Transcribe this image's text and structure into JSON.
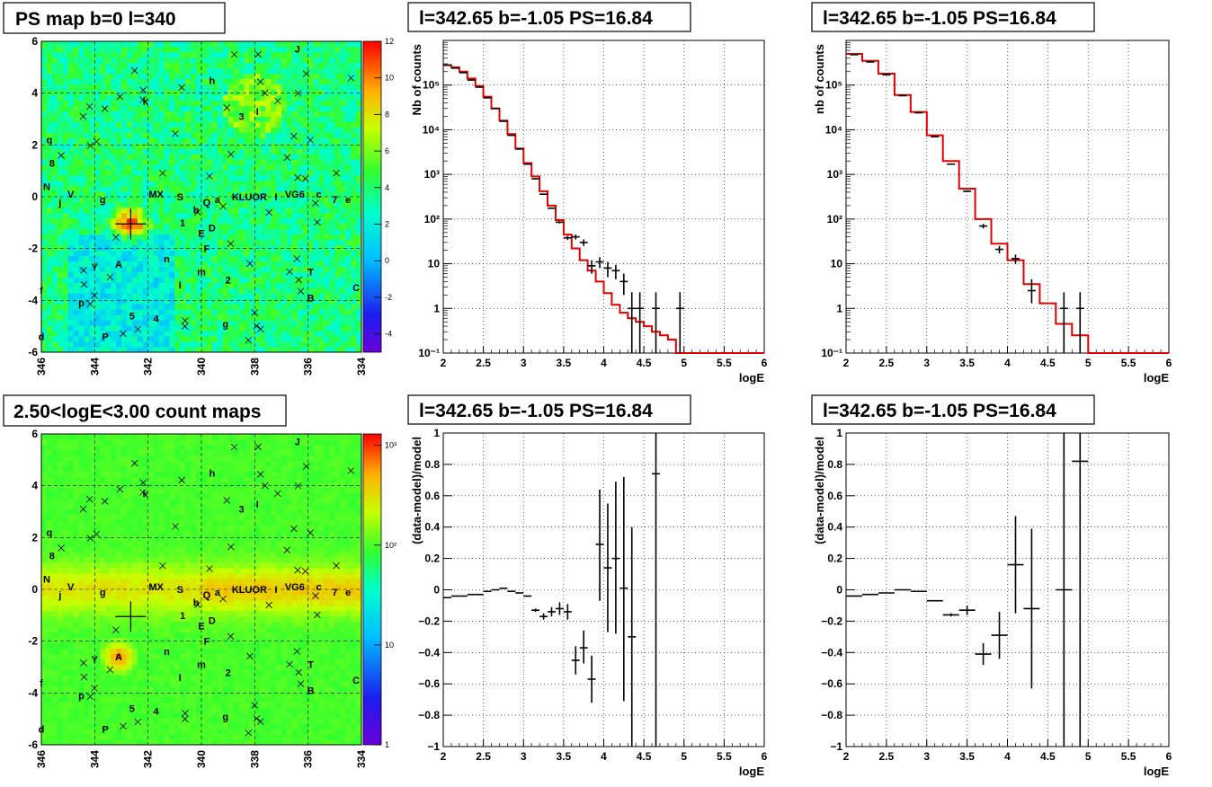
{
  "colors": {
    "data": "#000000",
    "model": "#e00000",
    "grid": "#000000"
  },
  "map_labels": [
    {
      "t": "J",
      "x": 336.4,
      "y": 5.7
    },
    {
      "t": "h",
      "x": 339.6,
      "y": 4.5
    },
    {
      "t": "k",
      "x": 342.1,
      "y": 3.7
    },
    {
      "t": "3",
      "x": 338.5,
      "y": 3.1
    },
    {
      "t": "I",
      "x": 337.9,
      "y": 3.3
    },
    {
      "t": "q",
      "x": 345.7,
      "y": 2.2
    },
    {
      "t": "8",
      "x": 345.6,
      "y": 1.3
    },
    {
      "t": "N",
      "x": 345.8,
      "y": 0.4
    },
    {
      "t": "V",
      "x": 344.9,
      "y": 0.1
    },
    {
      "t": "j",
      "x": 345.3,
      "y": -0.2
    },
    {
      "t": "g",
      "x": 343.7,
      "y": -0.1
    },
    {
      "t": "MX",
      "x": 341.7,
      "y": 0.1
    },
    {
      "t": "S",
      "x": 340.8,
      "y": 0
    },
    {
      "t": "Q",
      "x": 339.8,
      "y": -0.2
    },
    {
      "t": "a",
      "x": 339.4,
      "y": -0.1
    },
    {
      "t": "KLUOR",
      "x": 338.2,
      "y": 0
    },
    {
      "t": "I",
      "x": 337.2,
      "y": 0
    },
    {
      "t": "VG6",
      "x": 336.5,
      "y": 0.1
    },
    {
      "t": "c",
      "x": 335.6,
      "y": 0.1
    },
    {
      "t": "7",
      "x": 335.0,
      "y": -0.1
    },
    {
      "t": "e",
      "x": 334.5,
      "y": -0.1
    },
    {
      "t": "b",
      "x": 340.2,
      "y": -0.5
    },
    {
      "t": "1",
      "x": 340.7,
      "y": -1.0
    },
    {
      "t": "E",
      "x": 340.0,
      "y": -1.4
    },
    {
      "t": "D",
      "x": 339.6,
      "y": -1.2
    },
    {
      "t": "F",
      "x": 339.8,
      "y": -2.0
    },
    {
      "t": "n",
      "x": 341.3,
      "y": -2.4
    },
    {
      "t": "Y",
      "x": 344.0,
      "y": -2.7
    },
    {
      "t": "T",
      "x": 335.9,
      "y": -2.9
    },
    {
      "t": "A",
      "x": 343.1,
      "y": -2.6
    },
    {
      "t": "m",
      "x": 340.0,
      "y": -2.9
    },
    {
      "t": "2",
      "x": 339.0,
      "y": -3.2
    },
    {
      "t": "I",
      "x": 340.8,
      "y": -3.4
    },
    {
      "t": "f",
      "x": 346.0,
      "y": -3.6
    },
    {
      "t": "C",
      "x": 334.2,
      "y": -3.5
    },
    {
      "t": "B",
      "x": 335.9,
      "y": -3.9
    },
    {
      "t": "p",
      "x": 344.5,
      "y": -4.1
    },
    {
      "t": "5",
      "x": 342.6,
      "y": -4.6
    },
    {
      "t": "4",
      "x": 341.7,
      "y": -4.7
    },
    {
      "t": "g",
      "x": 339.1,
      "y": -4.9
    },
    {
      "t": "P",
      "x": 343.6,
      "y": -5.4
    },
    {
      "t": "d",
      "x": 346.0,
      "y": -5.4
    }
  ],
  "panels": [
    {
      "title": "PS map b=0 l=340",
      "chart_data": {
        "type": "heatmap",
        "xlim": [
          346,
          334
        ],
        "ylim": [
          -6,
          6
        ],
        "x_ticks": [
          "346",
          "344",
          "342",
          "340",
          "338",
          "336",
          "334"
        ],
        "y_ticks": [
          "-6",
          "-4",
          "-2",
          "0",
          "2",
          "4",
          "6"
        ],
        "colorbar_ticks": [
          "-4",
          "-2",
          "0",
          "2",
          "4",
          "6",
          "8",
          "10",
          "12"
        ],
        "colorbar_range": [
          -5,
          12
        ],
        "scale": "linear"
      }
    },
    {
      "title": "l=342.65 b=-1.05 PS=16.84",
      "chart_data": {
        "type": "line",
        "xlabel": "logE",
        "ylabel": "Nb of counts",
        "xlim": [
          2,
          6
        ],
        "ylim": [
          0.1,
          1000000
        ],
        "log_y": true,
        "x_ticks": [
          "2",
          "2.5",
          "3",
          "3.5",
          "4",
          "4.5",
          "5",
          "5.5",
          "6"
        ],
        "y_ticks": [
          "10⁻¹",
          "1",
          "10",
          "10²",
          "10³",
          "10⁴",
          "10⁵"
        ],
        "model_bins": {
          "edges": [
            2,
            2.1,
            2.2,
            2.3,
            2.4,
            2.5,
            2.6,
            2.7,
            2.8,
            2.9,
            3.0,
            3.1,
            3.2,
            3.3,
            3.4,
            3.5,
            3.6,
            3.7,
            3.8,
            3.9,
            4.0,
            4.1,
            4.2,
            4.3,
            4.4,
            4.5,
            4.6,
            4.7,
            4.8,
            4.9,
            5.0,
            6.0
          ],
          "values": [
            280000,
            250000,
            200000,
            140000,
            95000,
            55000,
            30000,
            16000,
            8000,
            3800,
            1800,
            900,
            420,
            200,
            95,
            45,
            22,
            12,
            7,
            4,
            2.2,
            1.2,
            0.8,
            0.6,
            0.5,
            0.4,
            0.3,
            0.25,
            0.2,
            0.1,
            0.05
          ]
        },
        "data_points": [
          {
            "x": 2.05,
            "y": 280000,
            "lo": 280000,
            "hi": 280000
          },
          {
            "x": 2.15,
            "y": 240000,
            "lo": 240000,
            "hi": 240000
          },
          {
            "x": 2.25,
            "y": 190000,
            "lo": 190000,
            "hi": 190000
          },
          {
            "x": 2.35,
            "y": 130000,
            "lo": 130000,
            "hi": 130000
          },
          {
            "x": 2.45,
            "y": 90000,
            "lo": 90000,
            "hi": 90000
          },
          {
            "x": 2.55,
            "y": 52000,
            "lo": 52000,
            "hi": 52000
          },
          {
            "x": 2.65,
            "y": 30000,
            "lo": 30000,
            "hi": 30000
          },
          {
            "x": 2.75,
            "y": 15500,
            "lo": 15500,
            "hi": 15500
          },
          {
            "x": 2.85,
            "y": 7500,
            "lo": 7500,
            "hi": 7500
          },
          {
            "x": 2.95,
            "y": 3700,
            "lo": 3700,
            "hi": 3700
          },
          {
            "x": 3.05,
            "y": 1700,
            "lo": 1700,
            "hi": 1700
          },
          {
            "x": 3.15,
            "y": 800,
            "lo": 800,
            "hi": 800
          },
          {
            "x": 3.25,
            "y": 360,
            "lo": 360,
            "hi": 360
          },
          {
            "x": 3.35,
            "y": 175,
            "lo": 175,
            "hi": 175
          },
          {
            "x": 3.45,
            "y": 85,
            "lo": 80,
            "hi": 90
          },
          {
            "x": 3.55,
            "y": 38,
            "lo": 34,
            "hi": 42
          },
          {
            "x": 3.65,
            "y": 40,
            "lo": 35,
            "hi": 45
          },
          {
            "x": 3.75,
            "y": 30,
            "lo": 25,
            "hi": 35
          },
          {
            "x": 3.85,
            "y": 9,
            "lo": 6,
            "hi": 12
          },
          {
            "x": 3.95,
            "y": 11,
            "lo": 8,
            "hi": 14
          },
          {
            "x": 4.05,
            "y": 8,
            "lo": 5,
            "hi": 11
          },
          {
            "x": 4.15,
            "y": 7,
            "lo": 4.5,
            "hi": 9.5
          },
          {
            "x": 4.25,
            "y": 4,
            "lo": 2,
            "hi": 6
          },
          {
            "x": 4.35,
            "y": 1,
            "lo": 0.1,
            "hi": 2.3
          },
          {
            "x": 4.45,
            "y": 1,
            "lo": 0.1,
            "hi": 2.3
          },
          {
            "x": 4.65,
            "y": 1,
            "lo": 0.1,
            "hi": 2.3
          },
          {
            "x": 4.95,
            "y": 1,
            "lo": 0.1,
            "hi": 2.3
          }
        ]
      }
    },
    {
      "title": "l=342.65 b=-1.05 PS=16.84",
      "chart_data": {
        "type": "line",
        "xlabel": "logE",
        "ylabel": "nb of counts",
        "xlim": [
          2,
          6
        ],
        "ylim": [
          0.1,
          1000000
        ],
        "log_y": true,
        "x_ticks": [
          "2",
          "2.5",
          "3",
          "3.5",
          "4",
          "4.5",
          "5",
          "5.5",
          "6"
        ],
        "y_ticks": [
          "10⁻¹",
          "1",
          "10",
          "10²",
          "10³",
          "10⁴",
          "10⁵"
        ],
        "model_bins": {
          "edges": [
            2,
            2.2,
            2.4,
            2.6,
            2.8,
            3.0,
            3.2,
            3.4,
            3.6,
            3.8,
            4.0,
            4.2,
            4.4,
            4.6,
            4.8,
            5.0,
            6.0
          ],
          "values": [
            500000,
            350000,
            180000,
            60000,
            25000,
            7500,
            2000,
            480,
            100,
            28,
            12,
            3.5,
            1.3,
            0.45,
            0.25,
            0.08
          ]
        },
        "data_points": [
          {
            "x": 2.1,
            "y": 480000,
            "lo": 480000,
            "hi": 480000
          },
          {
            "x": 2.3,
            "y": 330000,
            "lo": 330000,
            "hi": 330000
          },
          {
            "x": 2.5,
            "y": 170000,
            "lo": 170000,
            "hi": 170000
          },
          {
            "x": 2.7,
            "y": 58000,
            "lo": 58000,
            "hi": 58000
          },
          {
            "x": 2.9,
            "y": 24000,
            "lo": 24000,
            "hi": 24000
          },
          {
            "x": 3.1,
            "y": 7000,
            "lo": 7000,
            "hi": 7000
          },
          {
            "x": 3.3,
            "y": 1700,
            "lo": 1700,
            "hi": 1700
          },
          {
            "x": 3.5,
            "y": 420,
            "lo": 400,
            "hi": 440
          },
          {
            "x": 3.7,
            "y": 70,
            "lo": 62,
            "hi": 78
          },
          {
            "x": 3.9,
            "y": 21,
            "lo": 17,
            "hi": 25
          },
          {
            "x": 4.1,
            "y": 13,
            "lo": 10,
            "hi": 16
          },
          {
            "x": 4.3,
            "y": 2.5,
            "lo": 1.3,
            "hi": 4.5
          },
          {
            "x": 4.7,
            "y": 1,
            "lo": 0.1,
            "hi": 2.3
          },
          {
            "x": 4.9,
            "y": 1,
            "lo": 0.1,
            "hi": 2.3
          }
        ]
      }
    },
    {
      "title": "2.50<logE<3.00 count maps",
      "chart_data": {
        "type": "heatmap",
        "xlim": [
          346,
          334
        ],
        "ylim": [
          -6,
          6
        ],
        "x_ticks": [
          "346",
          "344",
          "342",
          "340",
          "338",
          "336",
          "334"
        ],
        "y_ticks": [
          "-6",
          "-4",
          "-2",
          "0",
          "2",
          "4",
          "6"
        ],
        "colorbar_ticks": [
          "1",
          "10",
          "10²",
          "10³"
        ],
        "colorbar_range": [
          1,
          1300
        ],
        "scale": "log"
      }
    },
    {
      "title": "l=342.65 b=-1.05 PS=16.84",
      "chart_data": {
        "type": "scatter",
        "xlabel": "logE",
        "ylabel": "(data-model)/model",
        "xlim": [
          2,
          6
        ],
        "ylim": [
          -1,
          1
        ],
        "log_y": false,
        "x_ticks": [
          "2",
          "2.5",
          "3",
          "3.5",
          "4",
          "4.5",
          "5",
          "5.5",
          "6"
        ],
        "y_ticks": [
          "−1",
          "−0.8",
          "−0.6",
          "−0.4",
          "−0.2",
          "0",
          "0.2",
          "0.4",
          "0.6",
          "0.8",
          "1"
        ],
        "points": [
          {
            "x": 2.05,
            "y": -0.05,
            "lo": -0.05,
            "hi": -0.05,
            "xe": 0.05
          },
          {
            "x": 2.15,
            "y": -0.04,
            "lo": -0.04,
            "hi": -0.04,
            "xe": 0.05
          },
          {
            "x": 2.25,
            "y": -0.04,
            "lo": -0.04,
            "hi": -0.04,
            "xe": 0.05
          },
          {
            "x": 2.35,
            "y": -0.03,
            "lo": -0.03,
            "hi": -0.03,
            "xe": 0.05
          },
          {
            "x": 2.45,
            "y": -0.03,
            "lo": -0.03,
            "hi": -0.03,
            "xe": 0.05
          },
          {
            "x": 2.55,
            "y": -0.01,
            "lo": -0.01,
            "hi": -0.01,
            "xe": 0.05
          },
          {
            "x": 2.65,
            "y": 0.0,
            "lo": 0.0,
            "hi": 0.0,
            "xe": 0.05
          },
          {
            "x": 2.75,
            "y": 0.01,
            "lo": 0.01,
            "hi": 0.01,
            "xe": 0.05
          },
          {
            "x": 2.85,
            "y": -0.01,
            "lo": -0.01,
            "hi": -0.01,
            "xe": 0.05
          },
          {
            "x": 2.95,
            "y": -0.02,
            "lo": -0.02,
            "hi": -0.02,
            "xe": 0.05
          },
          {
            "x": 3.05,
            "y": -0.04,
            "lo": -0.04,
            "hi": -0.04,
            "xe": 0.05
          },
          {
            "x": 3.15,
            "y": -0.13,
            "lo": -0.14,
            "hi": -0.12,
            "xe": 0.05
          },
          {
            "x": 3.25,
            "y": -0.17,
            "lo": -0.19,
            "hi": -0.15,
            "xe": 0.05
          },
          {
            "x": 3.35,
            "y": -0.14,
            "lo": -0.17,
            "hi": -0.11,
            "xe": 0.05
          },
          {
            "x": 3.45,
            "y": -0.12,
            "lo": -0.16,
            "hi": -0.08,
            "xe": 0.05
          },
          {
            "x": 3.55,
            "y": -0.14,
            "lo": -0.19,
            "hi": -0.09,
            "xe": 0.05
          },
          {
            "x": 3.65,
            "y": -0.45,
            "lo": -0.54,
            "hi": -0.36,
            "xe": 0.05
          },
          {
            "x": 3.75,
            "y": -0.37,
            "lo": -0.47,
            "hi": -0.26,
            "xe": 0.05
          },
          {
            "x": 3.85,
            "y": -0.57,
            "lo": -0.72,
            "hi": -0.42,
            "xe": 0.05
          },
          {
            "x": 3.95,
            "y": 0.29,
            "lo": -0.07,
            "hi": 0.64,
            "xe": 0.05
          },
          {
            "x": 4.05,
            "y": 0.14,
            "lo": -0.27,
            "hi": 0.55,
            "xe": 0.05
          },
          {
            "x": 4.15,
            "y": 0.2,
            "lo": -0.28,
            "hi": 0.69,
            "xe": 0.05
          },
          {
            "x": 4.25,
            "y": 0.01,
            "lo": -0.71,
            "hi": 0.72,
            "xe": 0.05
          },
          {
            "x": 4.35,
            "y": -0.3,
            "lo": -1.0,
            "hi": 0.4,
            "xe": 0.05
          },
          {
            "x": 4.65,
            "y": 0.74,
            "lo": -1.0,
            "hi": 1.0,
            "xe": 0.05
          }
        ]
      }
    },
    {
      "title": "l=342.65 b=-1.05 PS=16.84",
      "chart_data": {
        "type": "scatter",
        "xlabel": "logE",
        "ylabel": "(data-model)/model",
        "xlim": [
          2,
          6
        ],
        "ylim": [
          -1,
          1
        ],
        "log_y": false,
        "x_ticks": [
          "2",
          "2.5",
          "3",
          "3.5",
          "4",
          "4.5",
          "5",
          "5.5",
          "6"
        ],
        "y_ticks": [
          "−1",
          "−0.8",
          "−0.6",
          "−0.4",
          "−0.2",
          "0",
          "0.2",
          "0.4",
          "0.6",
          "0.8",
          "1"
        ],
        "points": [
          {
            "x": 2.1,
            "y": -0.04,
            "lo": -0.04,
            "hi": -0.04,
            "xe": 0.1
          },
          {
            "x": 2.3,
            "y": -0.03,
            "lo": -0.03,
            "hi": -0.03,
            "xe": 0.1
          },
          {
            "x": 2.5,
            "y": -0.02,
            "lo": -0.02,
            "hi": -0.02,
            "xe": 0.1
          },
          {
            "x": 2.7,
            "y": 0.0,
            "lo": 0.0,
            "hi": 0.0,
            "xe": 0.1
          },
          {
            "x": 2.9,
            "y": -0.01,
            "lo": -0.01,
            "hi": -0.01,
            "xe": 0.1
          },
          {
            "x": 3.1,
            "y": -0.07,
            "lo": -0.07,
            "hi": -0.07,
            "xe": 0.1
          },
          {
            "x": 3.3,
            "y": -0.16,
            "lo": -0.17,
            "hi": -0.15,
            "xe": 0.1
          },
          {
            "x": 3.5,
            "y": -0.13,
            "lo": -0.16,
            "hi": -0.1,
            "xe": 0.1
          },
          {
            "x": 3.7,
            "y": -0.41,
            "lo": -0.48,
            "hi": -0.34,
            "xe": 0.1
          },
          {
            "x": 3.9,
            "y": -0.29,
            "lo": -0.44,
            "hi": -0.14,
            "xe": 0.1
          },
          {
            "x": 4.1,
            "y": 0.16,
            "lo": -0.15,
            "hi": 0.47,
            "xe": 0.1
          },
          {
            "x": 4.3,
            "y": -0.12,
            "lo": -0.63,
            "hi": 0.39,
            "xe": 0.1
          },
          {
            "x": 4.7,
            "y": 0.0,
            "lo": -1.0,
            "hi": 1.0,
            "xe": 0.1
          },
          {
            "x": 4.9,
            "y": 0.82,
            "lo": -1.0,
            "hi": 1.0,
            "xe": 0.1
          }
        ]
      }
    }
  ]
}
